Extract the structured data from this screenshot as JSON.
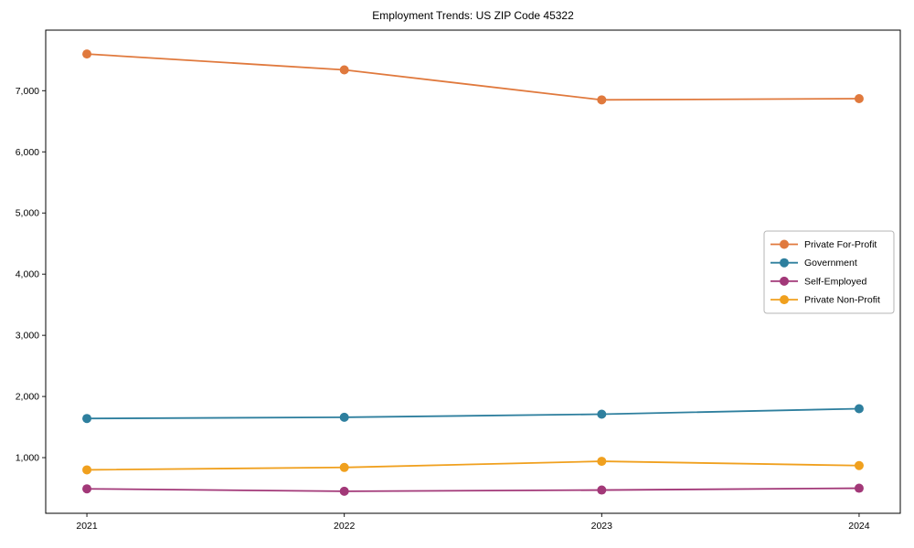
{
  "chart_data": {
    "type": "line",
    "title": "Employment Trends: US ZIP Code 45322",
    "x": [
      2021,
      2022,
      2023,
      2024
    ],
    "x_tick_labels": [
      "2021",
      "2022",
      "2023",
      "2024"
    ],
    "y_ticks": [
      1000,
      2000,
      3000,
      4000,
      5000,
      6000,
      7000
    ],
    "y_tick_labels": [
      "1,000",
      "2,000",
      "3,000",
      "4,000",
      "5,000",
      "6,000",
      "7,000"
    ],
    "xlim": [
      2020.84,
      2024.16
    ],
    "ylim": [
      90,
      7990
    ],
    "grid": false,
    "marker": "circle",
    "legend_position": "center-right",
    "series": [
      {
        "name": "Private For-Profit",
        "color": "#E0793D",
        "values": [
          7600,
          7340,
          6850,
          6870
        ]
      },
      {
        "name": "Government",
        "color": "#2E7F9E",
        "values": [
          1640,
          1660,
          1710,
          1800
        ]
      },
      {
        "name": "Self-Employed",
        "color": "#A23878",
        "values": [
          490,
          450,
          470,
          500
        ]
      },
      {
        "name": "Private Non-Profit",
        "color": "#F0A01E",
        "values": [
          800,
          840,
          940,
          870
        ]
      }
    ]
  }
}
